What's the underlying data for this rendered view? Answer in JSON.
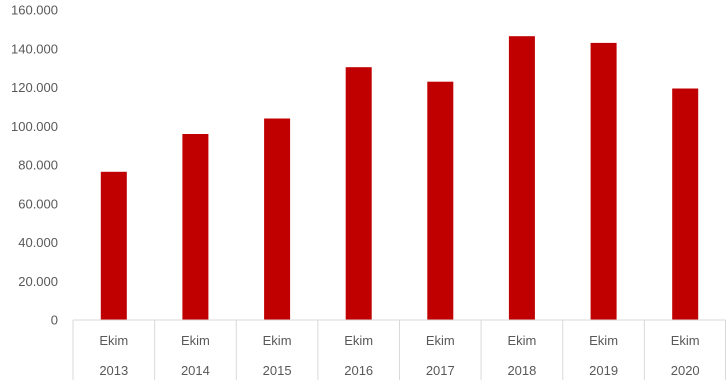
{
  "chart_data": {
    "type": "bar",
    "title": "",
    "xlabel": "",
    "ylabel": "",
    "categories": [
      {
        "month": "Ekim",
        "year": "2013"
      },
      {
        "month": "Ekim",
        "year": "2014"
      },
      {
        "month": "Ekim",
        "year": "2015"
      },
      {
        "month": "Ekim",
        "year": "2016"
      },
      {
        "month": "Ekim",
        "year": "2017"
      },
      {
        "month": "Ekim",
        "year": "2018"
      },
      {
        "month": "Ekim",
        "year": "2019"
      },
      {
        "month": "Ekim",
        "year": "2020"
      }
    ],
    "values": [
      76500,
      96000,
      104000,
      130500,
      123000,
      146500,
      143000,
      119500
    ],
    "ylim": [
      0,
      160000
    ],
    "yticks": [
      "0",
      "20.000",
      "40.000",
      "60.000",
      "80.000",
      "100.000",
      "120.000",
      "140.000",
      "160.000"
    ],
    "grid": false,
    "legend": "none",
    "bar_color": "#C00000",
    "axis_color": "#D9D9D9",
    "text_color": "#595959"
  }
}
